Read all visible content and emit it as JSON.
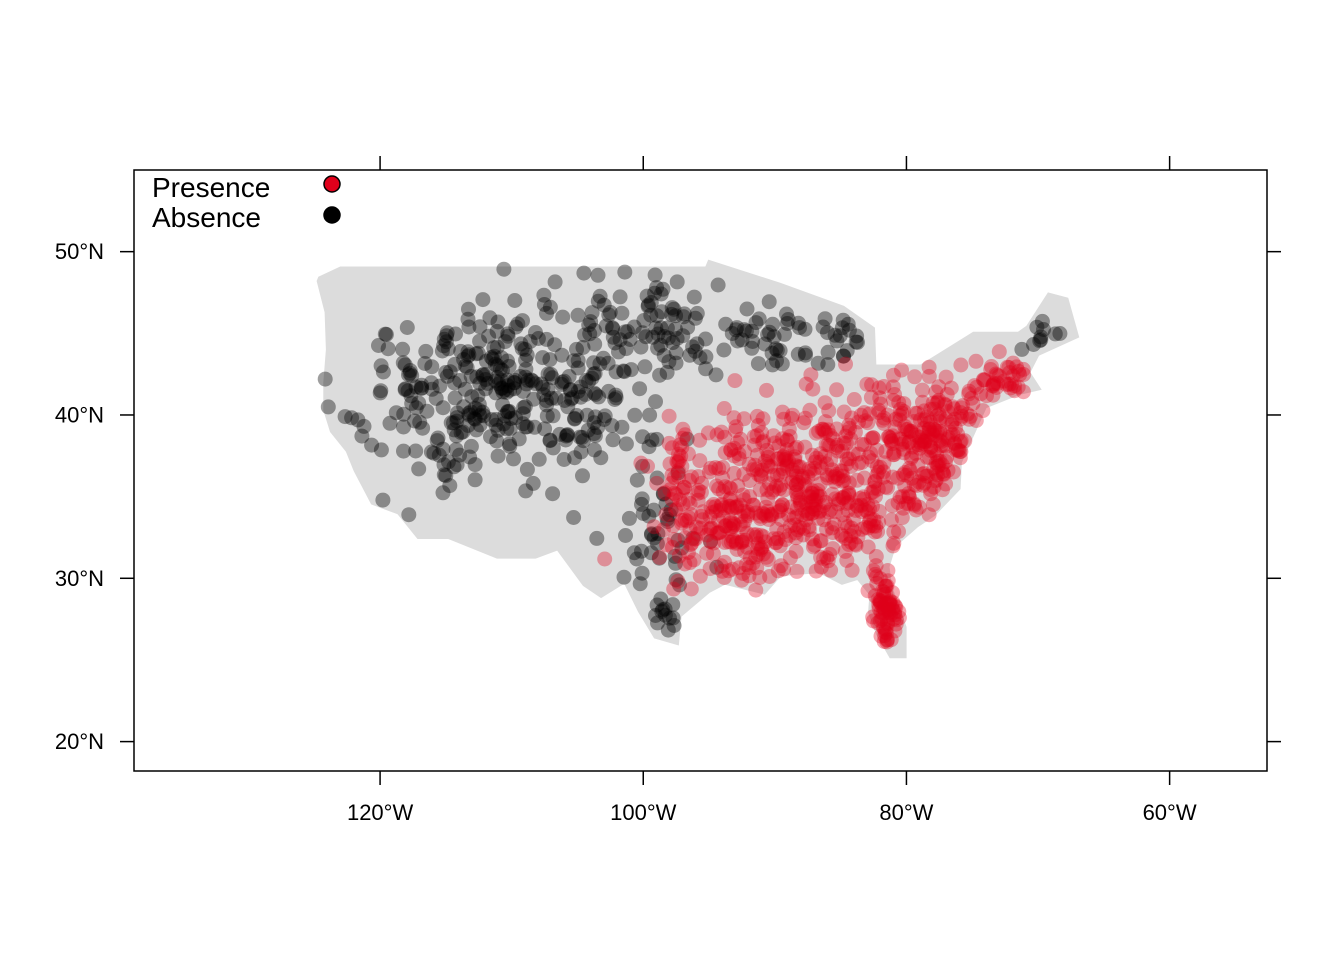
{
  "figure": {
    "axes": {
      "x_range": [
        -138.7,
        -52.6
      ],
      "y_range": [
        18.2,
        55.0
      ],
      "x_ticks": [
        -120,
        -100,
        -80,
        -60
      ],
      "y_ticks": [
        20,
        30,
        40,
        50
      ],
      "x_tick_labels": [
        "120°W",
        "100°W",
        "80°W",
        "60°W"
      ],
      "y_tick_labels": [
        "20°N",
        "30°N",
        "40°N",
        "50°N"
      ]
    },
    "legend": {
      "placement": "top-left",
      "items": [
        {
          "label": "Presence",
          "color": "#e0001b"
        },
        {
          "label": "Absence",
          "color": "#000000"
        }
      ]
    },
    "background_region": {
      "name": "conterminous-us",
      "color": "#dcdcdc",
      "outline": [
        [
          -124.6,
          48.4
        ],
        [
          -123.0,
          49.0
        ],
        [
          -95.2,
          49.0
        ],
        [
          -95.0,
          49.4
        ],
        [
          -89.6,
          48.0
        ],
        [
          -84.8,
          46.6
        ],
        [
          -82.5,
          45.3
        ],
        [
          -82.4,
          43.0
        ],
        [
          -78.9,
          43.0
        ],
        [
          -76.5,
          44.2
        ],
        [
          -74.9,
          45.0
        ],
        [
          -71.5,
          45.0
        ],
        [
          -70.8,
          45.4
        ],
        [
          -69.2,
          47.4
        ],
        [
          -67.8,
          47.1
        ],
        [
          -67.0,
          44.8
        ],
        [
          -70.0,
          43.7
        ],
        [
          -70.7,
          42.6
        ],
        [
          -69.9,
          41.6
        ],
        [
          -71.5,
          41.3
        ],
        [
          -74.0,
          40.5
        ],
        [
          -74.9,
          38.9
        ],
        [
          -75.9,
          37.1
        ],
        [
          -76.0,
          35.5
        ],
        [
          -77.9,
          33.9
        ],
        [
          -79.2,
          33.2
        ],
        [
          -80.9,
          32.0
        ],
        [
          -81.4,
          30.7
        ],
        [
          -81.2,
          29.5
        ],
        [
          -80.1,
          27.0
        ],
        [
          -80.1,
          25.2
        ],
        [
          -81.2,
          25.2
        ],
        [
          -82.2,
          26.6
        ],
        [
          -82.8,
          27.9
        ],
        [
          -82.7,
          29.0
        ],
        [
          -83.7,
          30.0
        ],
        [
          -84.9,
          29.7
        ],
        [
          -86.6,
          30.4
        ],
        [
          -88.5,
          30.3
        ],
        [
          -89.6,
          30.2
        ],
        [
          -90.8,
          29.1
        ],
        [
          -93.8,
          29.7
        ],
        [
          -95.0,
          29.2
        ],
        [
          -97.2,
          27.7
        ],
        [
          -97.4,
          26.0
        ],
        [
          -99.1,
          26.4
        ],
        [
          -100.3,
          28.0
        ],
        [
          -101.4,
          29.8
        ],
        [
          -103.2,
          28.9
        ],
        [
          -104.5,
          29.6
        ],
        [
          -106.5,
          31.8
        ],
        [
          -108.2,
          31.3
        ],
        [
          -111.1,
          31.3
        ],
        [
          -114.8,
          32.5
        ],
        [
          -117.1,
          32.5
        ],
        [
          -118.6,
          34.0
        ],
        [
          -120.6,
          34.6
        ],
        [
          -121.9,
          36.6
        ],
        [
          -122.5,
          37.8
        ],
        [
          -123.7,
          39.0
        ],
        [
          -124.2,
          40.3
        ],
        [
          -124.2,
          42.0
        ],
        [
          -124.0,
          44.0
        ],
        [
          -124.1,
          46.3
        ],
        [
          -124.7,
          48.2
        ]
      ]
    },
    "absence_clusters": [
      [
        -110.5,
        41.5,
        10.5,
        4.9,
        360
      ],
      [
        -99.0,
        45.5,
        5.0,
        2.8,
        70
      ],
      [
        -90.5,
        45.3,
        4.5,
        2.0,
        40
      ],
      [
        -86.0,
        44.0,
        2.0,
        1.5,
        12
      ],
      [
        -99.0,
        32.5,
        2.6,
        3.4,
        40
      ],
      [
        -98.5,
        27.5,
        1.2,
        1.3,
        12
      ],
      [
        -84.5,
        45.0,
        1.8,
        1.0,
        8
      ],
      [
        -70.0,
        45.5,
        2.0,
        1.3,
        10
      ]
    ],
    "presence_clusters": [
      [
        -86.5,
        35.5,
        8.5,
        4.5,
        500
      ],
      [
        -78.0,
        39.0,
        3.5,
        2.8,
        170
      ],
      [
        -72.5,
        42.0,
        2.2,
        1.0,
        40
      ],
      [
        -81.5,
        28.0,
        1.2,
        2.0,
        70
      ],
      [
        -93.0,
        32.5,
        4.0,
        2.5,
        100
      ],
      [
        -97.5,
        35.5,
        1.7,
        4.0,
        45
      ]
    ]
  }
}
